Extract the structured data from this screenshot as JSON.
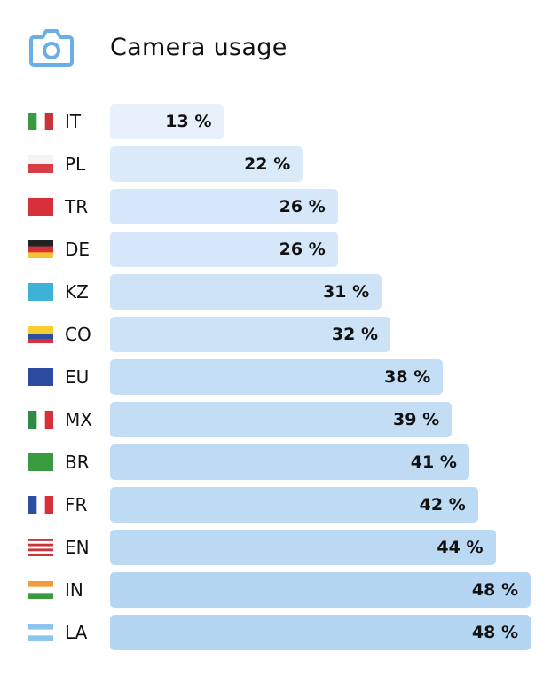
{
  "icon": "camera-icon",
  "accent": "#6aaee8",
  "chart_data": {
    "type": "bar",
    "orientation": "horizontal",
    "title": "Camera usage",
    "unit": "%",
    "categories": [
      "IT",
      "PL",
      "TR",
      "DE",
      "KZ",
      "CO",
      "EU",
      "MX",
      "BR",
      "FR",
      "EN",
      "IN",
      "LA"
    ],
    "values": [
      13,
      22,
      26,
      26,
      31,
      32,
      38,
      39,
      41,
      42,
      44,
      48,
      48
    ],
    "labels": [
      "13 %",
      "22 %",
      "26 %",
      "26 %",
      "31 %",
      "32 %",
      "38 %",
      "39 %",
      "41 %",
      "42 %",
      "44 %",
      "48 %",
      "48 %"
    ],
    "color_min": "#e8f1fb",
    "color_max": "#b5d6f2",
    "grid": false
  },
  "flags": {
    "IT": {
      "dir": "v",
      "colors": [
        "#3a9a3f",
        "#ffffff",
        "#c8343a"
      ]
    },
    "PL": {
      "dir": "h",
      "colors": [
        "#f4f4f4",
        "#d83c45"
      ]
    },
    "TR": {
      "dir": "h",
      "colors": [
        "#d8303a"
      ]
    },
    "DE": {
      "dir": "h",
      "colors": [
        "#222222",
        "#d8303a",
        "#f5c330"
      ]
    },
    "KZ": {
      "dir": "h",
      "colors": [
        "#3bb2d6"
      ]
    },
    "CO": {
      "dir": "h",
      "colors": [
        "#f7cd2f",
        "#f7cd2f",
        "#2c4fa0",
        "#d8303a"
      ]
    },
    "EU": {
      "dir": "h",
      "colors": [
        "#2b4aa0"
      ]
    },
    "MX": {
      "dir": "v",
      "colors": [
        "#2f8a45",
        "#ffffff",
        "#d8303a"
      ]
    },
    "BR": {
      "dir": "h",
      "colors": [
        "#3a9a3f"
      ]
    },
    "FR": {
      "dir": "v",
      "colors": [
        "#2c4fa0",
        "#ffffff",
        "#d8303a"
      ]
    },
    "EN": {
      "dir": "h",
      "colors": [
        "#c8343a",
        "#ffffff",
        "#c8343a",
        "#ffffff",
        "#c8343a",
        "#ffffff",
        "#c8343a"
      ]
    },
    "IN": {
      "dir": "h",
      "colors": [
        "#f39a3a",
        "#ffffff",
        "#3a9a3f"
      ]
    },
    "LA": {
      "dir": "h",
      "colors": [
        "#8cc4ec",
        "#ffffff",
        "#8cc4ec"
      ]
    }
  }
}
